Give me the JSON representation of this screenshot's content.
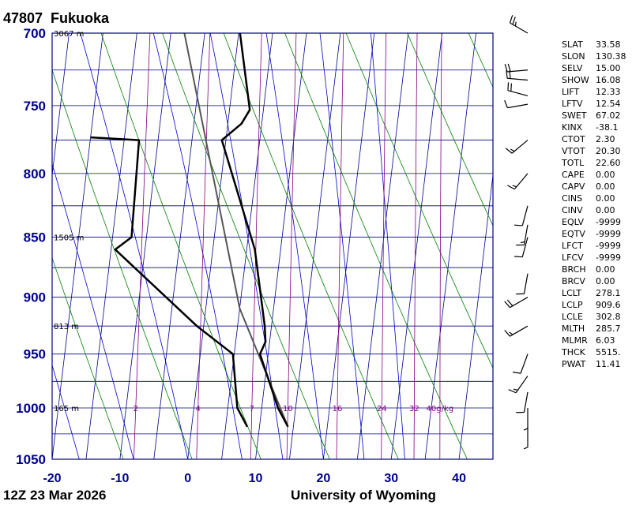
{
  "header": {
    "station_id": "47807",
    "station_name": "Fukuoka"
  },
  "footer": {
    "time": "12Z 23 Mar 2026",
    "source": "University of Wyoming"
  },
  "chart_data": {
    "type": "skew-t",
    "pressure_ticks": [
      "700",
      "750",
      "800",
      "850",
      "900",
      "950",
      "1000",
      "1050"
    ],
    "temperature_ticks": [
      "-20",
      "-10",
      "0",
      "10",
      "20",
      "30",
      "40"
    ],
    "plim": [
      1050,
      700
    ],
    "tlim": [
      -20,
      45
    ],
    "height_labels": [
      {
        "p": 700,
        "label": "3067 m"
      },
      {
        "p": 850,
        "label": "1505 m"
      },
      {
        "p": 925,
        "label": "813 m"
      },
      {
        "p": 1000,
        "label": "165 m"
      }
    ],
    "mixing_ratio_labels": [
      "2",
      "4",
      "7",
      "10",
      "16",
      "24",
      "32",
      "40g/kg"
    ],
    "mixing_ratio_values": [
      2,
      4,
      7,
      10,
      16,
      24,
      32,
      40
    ],
    "temperature_profile": [
      {
        "p": 1018,
        "t": 14.2
      },
      {
        "p": 1000,
        "t": 12.4
      },
      {
        "p": 950,
        "t": 8.8
      },
      {
        "p": 939,
        "t": 9.4
      },
      {
        "p": 925,
        "t": 9.0
      },
      {
        "p": 860,
        "t": 6.2
      },
      {
        "p": 775,
        "t": -0.6
      },
      {
        "p": 763,
        "t": 2.0
      },
      {
        "p": 753,
        "t": 3.0
      },
      {
        "p": 700,
        "t": 0.2
      }
    ],
    "dewpoint_profile": [
      {
        "p": 1018,
        "t": 8.2
      },
      {
        "p": 1000,
        "t": 6.4
      },
      {
        "p": 950,
        "t": 4.8
      },
      {
        "p": 925,
        "t": -1.0
      },
      {
        "p": 860,
        "t": -14.4
      },
      {
        "p": 850,
        "t": -12.2
      },
      {
        "p": 775,
        "t": -12.8
      },
      {
        "p": 773,
        "t": -20.0
      }
    ],
    "parcel_path": [
      {
        "p": 1018,
        "t": 14.2
      },
      {
        "p": 909.6,
        "t": 5.0
      },
      {
        "p": 700,
        "t": -8.0
      }
    ],
    "wind_barbs": [
      {
        "p": 700,
        "dir": 300,
        "spd": 25
      },
      {
        "p": 725,
        "dir": 265,
        "spd": 20
      },
      {
        "p": 732,
        "dir": 275,
        "spd": 20
      },
      {
        "p": 743,
        "dir": 285,
        "spd": 20
      },
      {
        "p": 749,
        "dir": 260,
        "spd": 10
      },
      {
        "p": 775,
        "dir": 230,
        "spd": 15
      },
      {
        "p": 800,
        "dir": 220,
        "spd": 15
      },
      {
        "p": 825,
        "dir": 195,
        "spd": 10
      },
      {
        "p": 840,
        "dir": 190,
        "spd": 15
      },
      {
        "p": 850,
        "dir": 195,
        "spd": 10
      },
      {
        "p": 880,
        "dir": 190,
        "spd": 10
      },
      {
        "p": 900,
        "dir": 240,
        "spd": 20
      },
      {
        "p": 925,
        "dir": 240,
        "spd": 15
      },
      {
        "p": 950,
        "dir": 200,
        "spd": 10
      },
      {
        "p": 970,
        "dir": 215,
        "spd": 15
      },
      {
        "p": 985,
        "dir": 190,
        "spd": 10
      },
      {
        "p": 1000,
        "dir": 180,
        "spd": 5
      },
      {
        "p": 1018,
        "dir": 180,
        "spd": 5
      }
    ],
    "colors": {
      "frame": "#00008b",
      "isotherm": "#00008b",
      "isobar": "#00008b",
      "dry_adiabat": "#008000",
      "moist_adiabat": "#0000cd",
      "mixing_ratio": "#800080",
      "profile": "#000000",
      "parcel": "#555555"
    }
  },
  "indices": [
    {
      "name": "SLAT",
      "value": "33.58"
    },
    {
      "name": "SLON",
      "value": "130.38"
    },
    {
      "name": "SELV",
      "value": "15.00"
    },
    {
      "name": "SHOW",
      "value": "16.08"
    },
    {
      "name": "LIFT",
      "value": "12.33"
    },
    {
      "name": "LFTV",
      "value": "12.54"
    },
    {
      "name": "SWET",
      "value": "67.02"
    },
    {
      "name": "KINX",
      "value": "-38.1"
    },
    {
      "name": "CTOT",
      "value": "2.30"
    },
    {
      "name": "VTOT",
      "value": "20.30"
    },
    {
      "name": "TOTL",
      "value": "22.60"
    },
    {
      "name": "CAPE",
      "value": "0.00"
    },
    {
      "name": "CAPV",
      "value": "0.00"
    },
    {
      "name": "CINS",
      "value": "0.00"
    },
    {
      "name": "CINV",
      "value": "0.00"
    },
    {
      "name": "EQLV",
      "value": "-9999"
    },
    {
      "name": "EQTV",
      "value": "-9999"
    },
    {
      "name": "LFCT",
      "value": "-9999"
    },
    {
      "name": "LFCV",
      "value": "-9999"
    },
    {
      "name": "BRCH",
      "value": "0.00"
    },
    {
      "name": "BRCV",
      "value": "0.00"
    },
    {
      "name": "LCLT",
      "value": "278.1"
    },
    {
      "name": "LCLP",
      "value": "909.6"
    },
    {
      "name": "LCLE",
      "value": "302.8"
    },
    {
      "name": "MLTH",
      "value": "285.7"
    },
    {
      "name": "MLMR",
      "value": "6.03"
    },
    {
      "name": "THCK",
      "value": "5515."
    },
    {
      "name": "PWAT",
      "value": "11.41"
    }
  ]
}
